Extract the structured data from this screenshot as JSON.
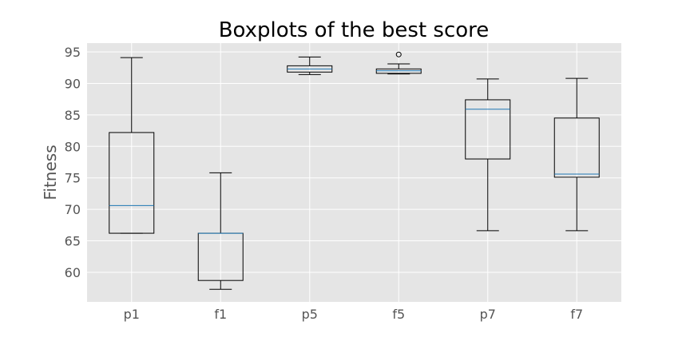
{
  "chart_data": {
    "type": "boxplot",
    "title": "Boxplots of the best score",
    "xlabel": "",
    "ylabel": "Fitness",
    "ylim": [
      55.3,
      96.4
    ],
    "yticks": [
      60,
      65,
      70,
      75,
      80,
      85,
      90,
      95
    ],
    "grid": true,
    "colors": {
      "plot_background": "#e5e5e5",
      "grid": "#ffffff",
      "box": "#000000",
      "median": "#1f77b4"
    },
    "categories": [
      "p1",
      "f1",
      "p5",
      "f5",
      "p7",
      "f7"
    ],
    "boxes": [
      {
        "label": "p1",
        "whisker_low": 66.2,
        "q1": 66.2,
        "median": 70.6,
        "q3": 82.2,
        "whisker_high": 94.1,
        "outliers": []
      },
      {
        "label": "f1",
        "whisker_low": 57.3,
        "q1": 58.7,
        "median": 66.2,
        "q3": 66.2,
        "whisker_high": 75.8,
        "outliers": []
      },
      {
        "label": "p5",
        "whisker_low": 91.4,
        "q1": 91.8,
        "median": 92.3,
        "q3": 92.8,
        "whisker_high": 94.2,
        "outliers": []
      },
      {
        "label": "f5",
        "whisker_low": 91.5,
        "q1": 91.6,
        "median": 92.0,
        "q3": 92.3,
        "whisker_high": 93.1,
        "outliers": [
          94.6
        ]
      },
      {
        "label": "p7",
        "whisker_low": 66.6,
        "q1": 78.0,
        "median": 85.9,
        "q3": 87.4,
        "whisker_high": 90.7,
        "outliers": []
      },
      {
        "label": "f7",
        "whisker_low": 66.6,
        "q1": 75.1,
        "median": 75.6,
        "q3": 84.5,
        "whisker_high": 90.8,
        "outliers": []
      }
    ]
  }
}
